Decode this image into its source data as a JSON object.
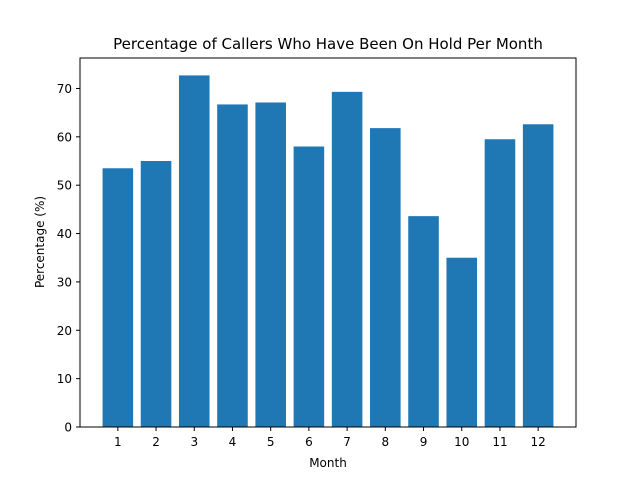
{
  "chart_data": {
    "type": "bar",
    "title": "Percentage of Callers Who Have Been On Hold Per Month",
    "xlabel": "Month",
    "ylabel": "Percentage (%)",
    "categories": [
      "1",
      "2",
      "3",
      "4",
      "5",
      "6",
      "7",
      "8",
      "9",
      "10",
      "11",
      "12"
    ],
    "values": [
      53.5,
      55.0,
      72.7,
      66.7,
      67.1,
      58.0,
      69.3,
      61.8,
      43.6,
      35.0,
      59.5,
      62.6
    ],
    "ylim": [
      0,
      76.3
    ],
    "yticks": [
      0,
      10,
      20,
      30,
      40,
      50,
      60,
      70
    ],
    "grid": false,
    "bar_color": "#1f77b4"
  }
}
